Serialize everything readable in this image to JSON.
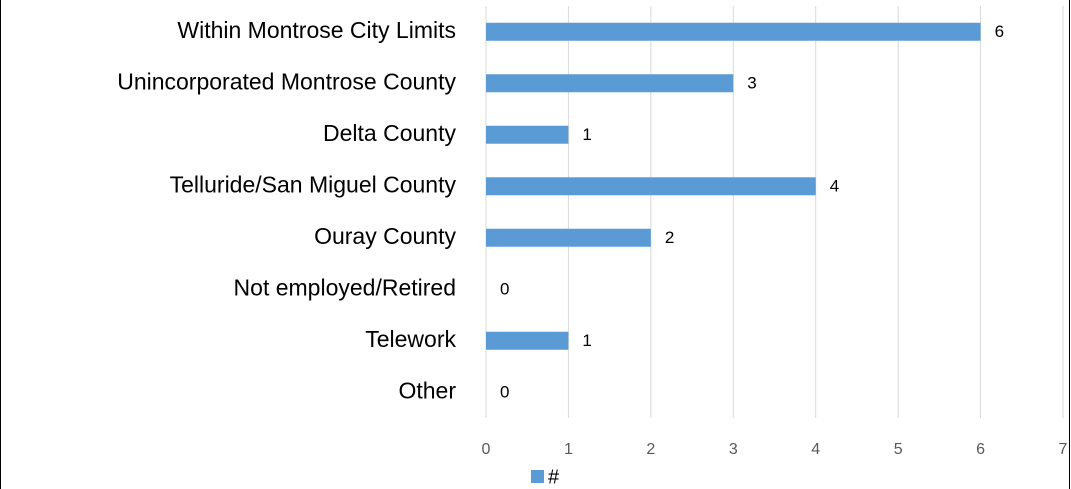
{
  "chart_data": {
    "type": "bar",
    "orientation": "horizontal",
    "categories": [
      "Within Montrose City Limits",
      "Unincorporated Montrose County",
      "Delta County",
      "Telluride/San Miguel County",
      "Ouray County",
      "Not employed/Retired",
      "Telework",
      "Other"
    ],
    "series": [
      {
        "name": "#",
        "color": "#5b9bd5",
        "values": [
          6,
          3,
          1,
          4,
          2,
          0,
          1,
          0
        ]
      }
    ],
    "xlim": [
      0,
      7
    ],
    "xticks": [
      0,
      1,
      2,
      3,
      4,
      5,
      6,
      7
    ],
    "grid": true,
    "legend": "bottom"
  }
}
